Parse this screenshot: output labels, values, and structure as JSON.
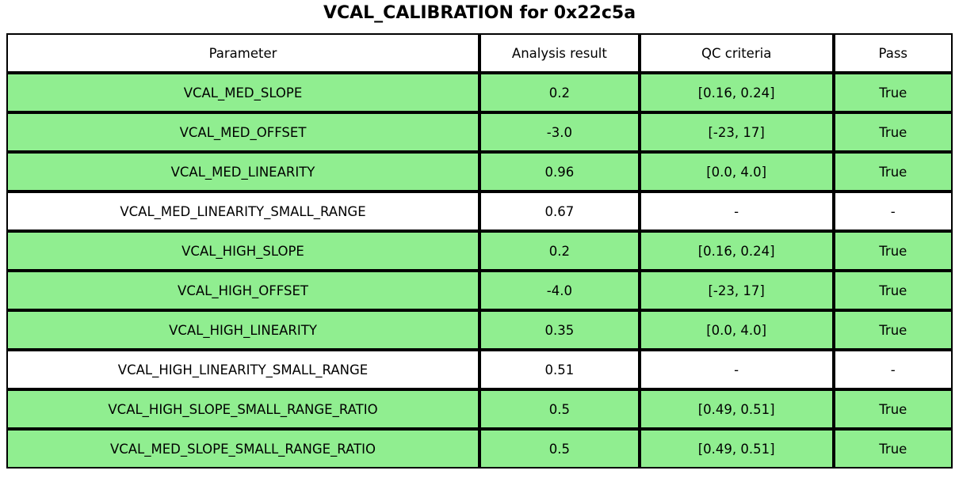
{
  "title": "VCAL_CALIBRATION for 0x22c5a",
  "colors": {
    "pass_row_bg": "#90EE90",
    "neutral_row_bg": "#ffffff",
    "border": "#000000"
  },
  "table": {
    "headers": {
      "parameter": "Parameter",
      "analysis_result": "Analysis result",
      "qc_criteria": "QC criteria",
      "pass": "Pass"
    },
    "rows": [
      {
        "parameter": "VCAL_MED_SLOPE",
        "analysis_result": "0.2",
        "qc_criteria": "[0.16, 0.24]",
        "pass": "True",
        "highlight": true
      },
      {
        "parameter": "VCAL_MED_OFFSET",
        "analysis_result": "-3.0",
        "qc_criteria": "[-23, 17]",
        "pass": "True",
        "highlight": true
      },
      {
        "parameter": "VCAL_MED_LINEARITY",
        "analysis_result": "0.96",
        "qc_criteria": "[0.0, 4.0]",
        "pass": "True",
        "highlight": true
      },
      {
        "parameter": "VCAL_MED_LINEARITY_SMALL_RANGE",
        "analysis_result": "0.67",
        "qc_criteria": "-",
        "pass": "-",
        "highlight": false
      },
      {
        "parameter": "VCAL_HIGH_SLOPE",
        "analysis_result": "0.2",
        "qc_criteria": "[0.16, 0.24]",
        "pass": "True",
        "highlight": true
      },
      {
        "parameter": "VCAL_HIGH_OFFSET",
        "analysis_result": "-4.0",
        "qc_criteria": "[-23, 17]",
        "pass": "True",
        "highlight": true
      },
      {
        "parameter": "VCAL_HIGH_LINEARITY",
        "analysis_result": "0.35",
        "qc_criteria": "[0.0, 4.0]",
        "pass": "True",
        "highlight": true
      },
      {
        "parameter": "VCAL_HIGH_LINEARITY_SMALL_RANGE",
        "analysis_result": "0.51",
        "qc_criteria": "-",
        "pass": "-",
        "highlight": false
      },
      {
        "parameter": "VCAL_HIGH_SLOPE_SMALL_RANGE_RATIO",
        "analysis_result": "0.5",
        "qc_criteria": "[0.49, 0.51]",
        "pass": "True",
        "highlight": true
      },
      {
        "parameter": "VCAL_MED_SLOPE_SMALL_RANGE_RATIO",
        "analysis_result": "0.5",
        "qc_criteria": "[0.49, 0.51]",
        "pass": "True",
        "highlight": true
      }
    ]
  }
}
